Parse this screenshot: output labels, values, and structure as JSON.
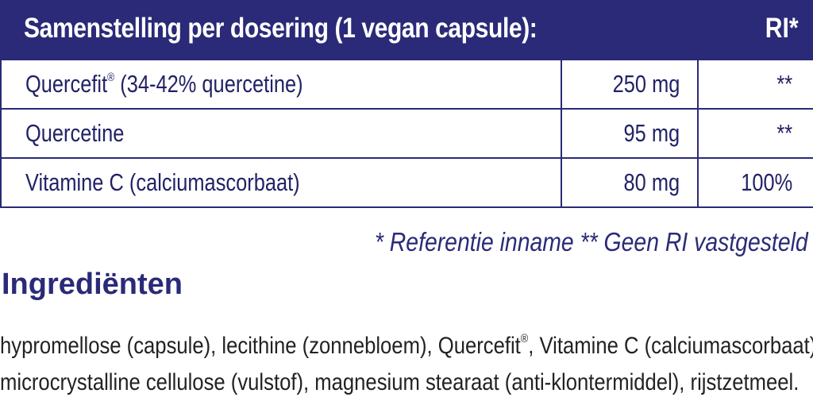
{
  "table": {
    "header_label": "Samenstelling per dosering (1 vegan capsule):",
    "header_ri": "RI*",
    "rows": [
      {
        "name": "Quercefit",
        "name_sup": "®",
        "name_rest": " (34-42% quercetine)",
        "amount": "250 mg",
        "ri": "**"
      },
      {
        "name": "Quercetine",
        "amount": "95 mg",
        "ri": "**"
      },
      {
        "name": "Vitamine C (calciumascorbaat)",
        "amount": "80 mg",
        "ri": "100%"
      }
    ]
  },
  "footnote": "* Referentie inname  ** Geen RI vastgesteld",
  "ingredients": {
    "title": "Ingrediënten",
    "line1_a": "hypromellose (capsule), lecithine (zonnebloem), Quercefit",
    "line1_sup": "®",
    "line1_b": ", Vitamine C (calciumascorbaat),",
    "line2": "microcrystalline cellulose (vulstof), magnesium stearaat (anti-klontermiddel), rijstzetmeel."
  },
  "colors": {
    "brand": "#2a2a78",
    "text": "#222222"
  }
}
